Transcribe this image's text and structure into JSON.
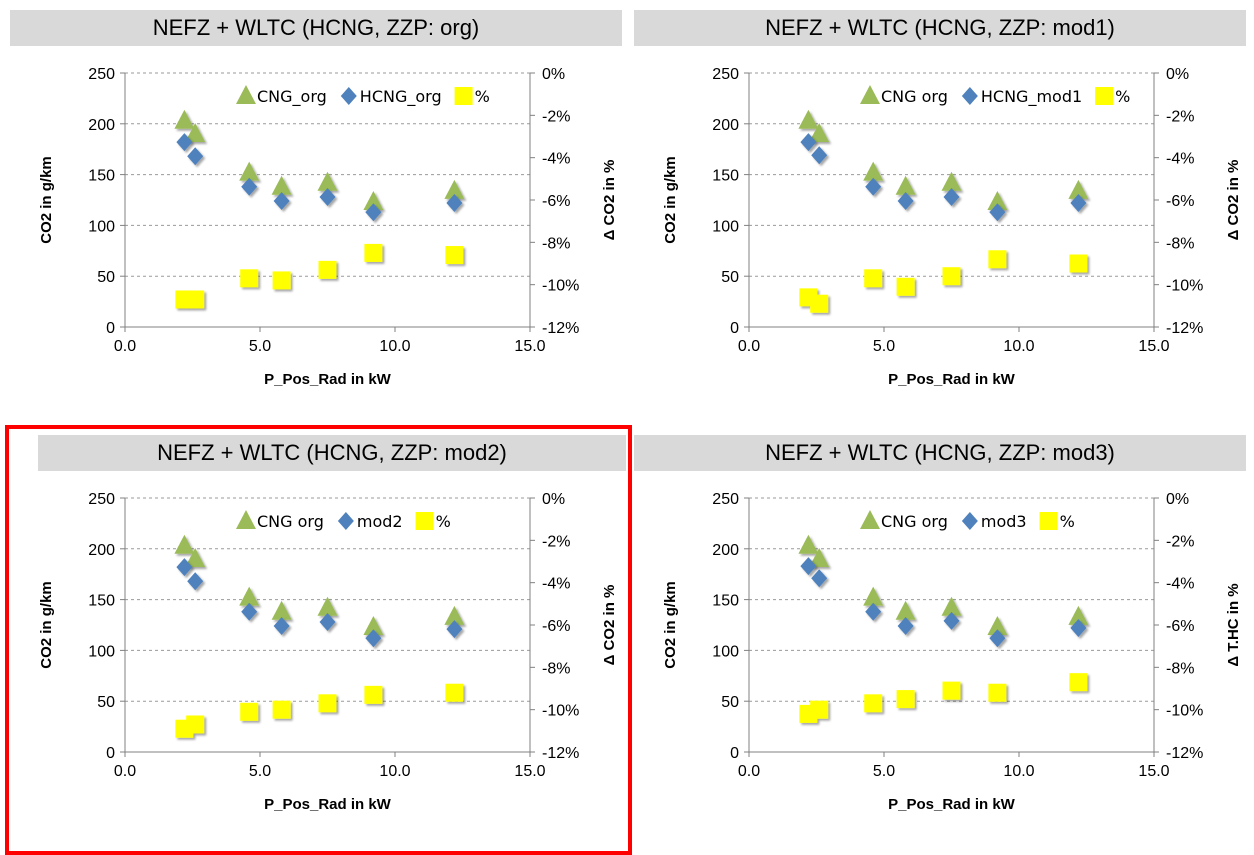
{
  "chart_data": [
    {
      "type": "scatter",
      "title": "NEFZ + WLTC (HCNG, ZZP: org)",
      "xlabel": "P_Pos_Rad in kW",
      "ylabel": "CO2 in g/km",
      "y2label": "Δ CO2 in %",
      "xlim": [
        0,
        15
      ],
      "xticks": [
        "0.0",
        "5.0",
        "10.0",
        "15.0"
      ],
      "ylim": [
        0,
        250
      ],
      "yticks": [
        "0",
        "50",
        "100",
        "150",
        "200",
        "250"
      ],
      "y2lim": [
        -12,
        0
      ],
      "y2ticks": [
        "0%",
        "-2%",
        "-4%",
        "-6%",
        "-8%",
        "-10%",
        "-12%"
      ],
      "grid": "horizontal",
      "legend_position": "top-right",
      "series": [
        {
          "name": "CNG_org",
          "axis": "left",
          "marker": "triangle",
          "color": "#9bbb59",
          "x": [
            2.2,
            2.6,
            4.6,
            5.8,
            7.5,
            9.2,
            12.2
          ],
          "y": [
            203,
            190,
            152,
            138,
            142,
            123,
            134
          ]
        },
        {
          "name": "HCNG_org",
          "axis": "left",
          "marker": "diamond",
          "color": "#4f81bd",
          "x": [
            2.2,
            2.6,
            4.6,
            5.8,
            7.5,
            9.2,
            12.2
          ],
          "y": [
            182,
            168,
            138,
            124,
            128,
            113,
            122
          ]
        },
        {
          "name": "%",
          "axis": "right",
          "marker": "square",
          "color": "#ffff00",
          "x": [
            2.2,
            2.6,
            4.6,
            5.8,
            7.5,
            9.2,
            12.2
          ],
          "y": [
            -10.7,
            -10.7,
            -9.7,
            -9.8,
            -9.3,
            -8.5,
            -8.6
          ]
        }
      ]
    },
    {
      "type": "scatter",
      "title": "NEFZ + WLTC (HCNG, ZZP: mod1)",
      "xlabel": "P_Pos_Rad in kW",
      "ylabel": "CO2 in g/km",
      "y2label": "Δ CO2 in %",
      "xlim": [
        0,
        15
      ],
      "xticks": [
        "0.0",
        "5.0",
        "10.0",
        "15.0"
      ],
      "ylim": [
        0,
        250
      ],
      "yticks": [
        "0",
        "50",
        "100",
        "150",
        "200",
        "250"
      ],
      "y2lim": [
        -12,
        0
      ],
      "y2ticks": [
        "0%",
        "-2%",
        "-4%",
        "-6%",
        "-8%",
        "-10%",
        "-12%"
      ],
      "grid": "horizontal",
      "legend_position": "top-right",
      "series": [
        {
          "name": "CNG org",
          "axis": "left",
          "marker": "triangle",
          "color": "#9bbb59",
          "x": [
            2.2,
            2.6,
            4.6,
            5.8,
            7.5,
            9.2,
            12.2
          ],
          "y": [
            203,
            190,
            152,
            138,
            142,
            123,
            134
          ]
        },
        {
          "name": "HCNG_mod1",
          "axis": "left",
          "marker": "diamond",
          "color": "#4f81bd",
          "x": [
            2.2,
            2.6,
            4.6,
            5.8,
            7.5,
            9.2,
            12.2
          ],
          "y": [
            182,
            169,
            138,
            124,
            128,
            113,
            122
          ]
        },
        {
          "name": "%",
          "axis": "right",
          "marker": "square",
          "color": "#ffff00",
          "x": [
            2.2,
            2.6,
            4.6,
            5.8,
            7.5,
            9.2,
            12.2
          ],
          "y": [
            -10.6,
            -10.9,
            -9.7,
            -10.1,
            -9.6,
            -8.8,
            -9.0
          ]
        }
      ]
    },
    {
      "type": "scatter",
      "title": "NEFZ + WLTC (HCNG, ZZP: mod2)",
      "xlabel": "P_Pos_Rad in kW",
      "ylabel": "CO2 in g/km",
      "y2label": "Δ CO2 in %",
      "xlim": [
        0,
        15
      ],
      "xticks": [
        "0.0",
        "5.0",
        "10.0",
        "15.0"
      ],
      "ylim": [
        0,
        250
      ],
      "yticks": [
        "0",
        "50",
        "100",
        "150",
        "200",
        "250"
      ],
      "y2lim": [
        -12,
        0
      ],
      "y2ticks": [
        "0%",
        "-2%",
        "-4%",
        "-6%",
        "-8%",
        "-10%",
        "-12%"
      ],
      "grid": "horizontal",
      "legend_position": "top-right",
      "series": [
        {
          "name": "CNG org",
          "axis": "left",
          "marker": "triangle",
          "color": "#9bbb59",
          "x": [
            2.2,
            2.6,
            4.6,
            5.8,
            7.5,
            9.2,
            12.2
          ],
          "y": [
            203,
            190,
            152,
            138,
            142,
            123,
            133
          ]
        },
        {
          "name": "mod2",
          "axis": "left",
          "marker": "diamond",
          "color": "#4f81bd",
          "x": [
            2.2,
            2.6,
            4.6,
            5.8,
            7.5,
            9.2,
            12.2
          ],
          "y": [
            182,
            168,
            138,
            124,
            128,
            112,
            121
          ]
        },
        {
          "name": "%",
          "axis": "right",
          "marker": "square",
          "color": "#ffff00",
          "x": [
            2.2,
            2.6,
            4.6,
            5.8,
            7.5,
            9.2,
            12.2
          ],
          "y": [
            -10.9,
            -10.7,
            -10.1,
            -10.0,
            -9.7,
            -9.3,
            -9.2
          ]
        }
      ]
    },
    {
      "type": "scatter",
      "title": "NEFZ + WLTC (HCNG, ZZP: mod3)",
      "xlabel": "P_Pos_Rad in kW",
      "ylabel": "CO2 in g/km",
      "y2label": "Δ T.HC in %",
      "xlim": [
        0,
        15
      ],
      "xticks": [
        "0.0",
        "5.0",
        "10.0",
        "15.0"
      ],
      "ylim": [
        0,
        250
      ],
      "yticks": [
        "0",
        "50",
        "100",
        "150",
        "200",
        "250"
      ],
      "y2lim": [
        -12,
        0
      ],
      "y2ticks": [
        "0%",
        "-2%",
        "-4%",
        "-6%",
        "-8%",
        "-10%",
        "-12%"
      ],
      "grid": "horizontal",
      "legend_position": "top-right",
      "series": [
        {
          "name": "CNG org",
          "axis": "left",
          "marker": "triangle",
          "color": "#9bbb59",
          "x": [
            2.2,
            2.6,
            4.6,
            5.8,
            7.5,
            9.2,
            12.2
          ],
          "y": [
            203,
            190,
            152,
            138,
            142,
            123,
            133
          ]
        },
        {
          "name": "mod3",
          "axis": "left",
          "marker": "diamond",
          "color": "#4f81bd",
          "x": [
            2.2,
            2.6,
            4.6,
            5.8,
            7.5,
            9.2,
            12.2
          ],
          "y": [
            183,
            171,
            138,
            124,
            129,
            112,
            122
          ]
        },
        {
          "name": "%",
          "axis": "right",
          "marker": "square",
          "color": "#ffff00",
          "x": [
            2.2,
            2.6,
            4.6,
            5.8,
            7.5,
            9.2,
            12.2
          ],
          "y": [
            -10.2,
            -10.0,
            -9.7,
            -9.5,
            -9.1,
            -9.2,
            -8.7
          ]
        }
      ]
    }
  ]
}
